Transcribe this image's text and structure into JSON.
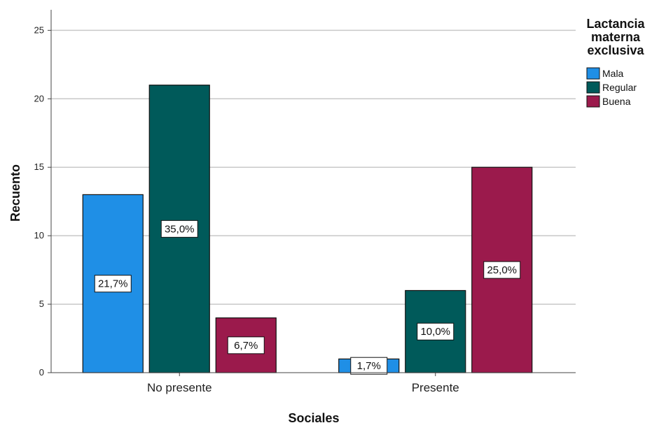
{
  "chart_data": {
    "type": "bar",
    "xlabel": "Sociales",
    "ylabel": "Recuento",
    "ylim": [
      0,
      26.5
    ],
    "yticks": [
      0,
      5,
      10,
      15,
      20,
      25
    ],
    "grid": true,
    "legend_position": "top-right",
    "legend_title": [
      "Lactancia",
      "materna",
      "exclusiva"
    ],
    "categories": [
      "No presente",
      "Presente"
    ],
    "series": [
      {
        "name": "Mala",
        "color": "#1f8fe6",
        "values": [
          13,
          1
        ],
        "labels": [
          "21,7%",
          "1,7%"
        ]
      },
      {
        "name": "Regular",
        "color": "#005a5a",
        "values": [
          21,
          6
        ],
        "labels": [
          "35,0%",
          "10,0%"
        ]
      },
      {
        "name": "Buena",
        "color": "#9b1a4c",
        "values": [
          4,
          15
        ],
        "labels": [
          "6,7%",
          "25,0%"
        ]
      }
    ]
  }
}
